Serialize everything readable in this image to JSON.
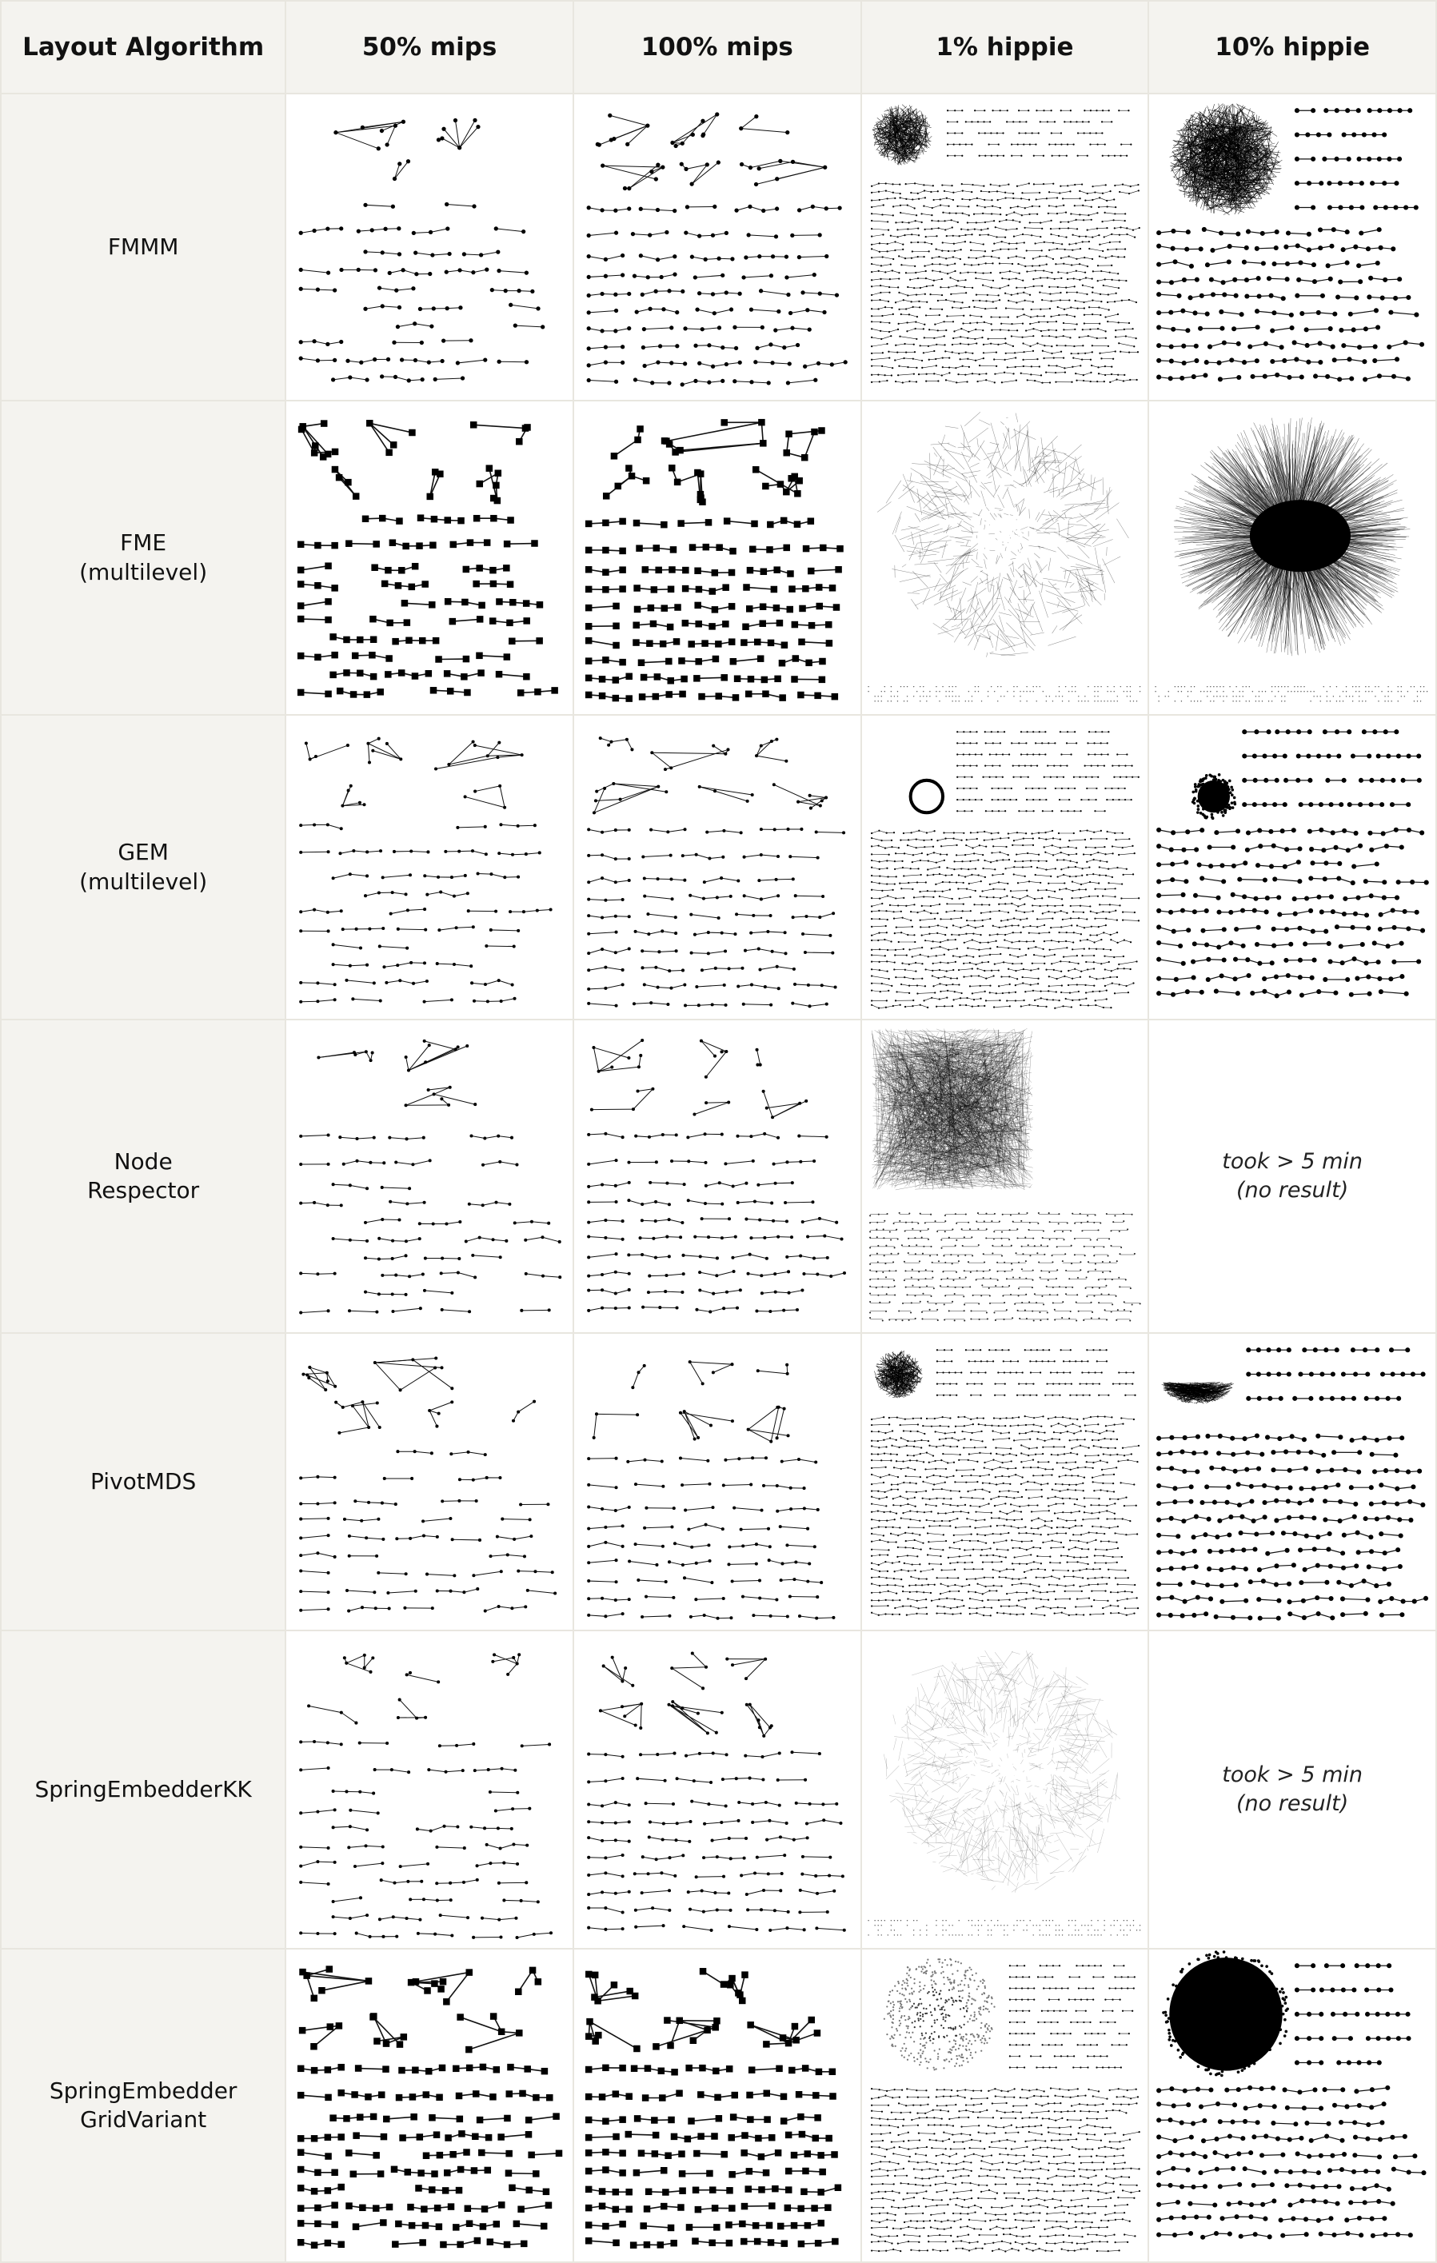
{
  "header": {
    "algorithm_label": "Layout Algorithm",
    "columns": [
      "50% mips",
      "100% mips",
      "1% hippie",
      "10% hippie"
    ]
  },
  "rows": [
    {
      "label_lines": [
        "FMMM"
      ],
      "cells": [
        {
          "kind": "components",
          "style": "compact",
          "density": 0.5
        },
        {
          "kind": "components",
          "style": "compact",
          "density": 1.0
        },
        {
          "kind": "hairball-components",
          "style": "compact",
          "density": 1.0
        },
        {
          "kind": "hairball-components",
          "style": "dense",
          "density": 0.8
        }
      ]
    },
    {
      "label_lines": [
        "FME",
        "(multilevel)"
      ],
      "cells": [
        {
          "kind": "components",
          "style": "bold",
          "density": 0.6
        },
        {
          "kind": "components",
          "style": "bold",
          "density": 1.0
        },
        {
          "kind": "radial",
          "style": "sparse",
          "density": 0.6
        },
        {
          "kind": "radial",
          "style": "dense",
          "density": 1.0
        }
      ]
    },
    {
      "label_lines": [
        "GEM",
        "(multilevel)"
      ],
      "cells": [
        {
          "kind": "components",
          "style": "spread",
          "density": 0.6
        },
        {
          "kind": "components",
          "style": "spread",
          "density": 1.0
        },
        {
          "kind": "hairball-components",
          "style": "ring",
          "density": 1.0
        },
        {
          "kind": "hairball-components",
          "style": "ball",
          "density": 0.8
        }
      ]
    },
    {
      "label_lines": [
        "Node",
        "Respector"
      ],
      "cells": [
        {
          "kind": "components",
          "style": "spread",
          "density": 0.6
        },
        {
          "kind": "components",
          "style": "spread",
          "density": 1.0
        },
        {
          "kind": "square",
          "style": "dense",
          "density": 1.0
        },
        {
          "kind": "no-result",
          "text_lines": [
            "took > 5 min",
            "(no result)"
          ]
        }
      ]
    },
    {
      "label_lines": [
        "PivotMDS"
      ],
      "cells": [
        {
          "kind": "components",
          "style": "spread",
          "density": 0.55
        },
        {
          "kind": "components",
          "style": "spread",
          "density": 0.9
        },
        {
          "kind": "hairball-components",
          "style": "small",
          "density": 1.0
        },
        {
          "kind": "hairball-components",
          "style": "triangle",
          "density": 0.8
        }
      ]
    },
    {
      "label_lines": [
        "SpringEmbedderKK"
      ],
      "cells": [
        {
          "kind": "components",
          "style": "spread",
          "density": 0.6
        },
        {
          "kind": "components",
          "style": "spread",
          "density": 1.0
        },
        {
          "kind": "radial",
          "style": "faint",
          "density": 0.5
        },
        {
          "kind": "no-result",
          "text_lines": [
            "took > 5 min",
            "(no result)"
          ]
        }
      ]
    },
    {
      "label_lines": [
        "SpringEmbedder",
        "GridVariant"
      ],
      "cells": [
        {
          "kind": "components",
          "style": "bold",
          "density": 0.7
        },
        {
          "kind": "components",
          "style": "bold",
          "density": 1.0
        },
        {
          "kind": "hairball-components",
          "style": "disk",
          "density": 1.0
        },
        {
          "kind": "hairball-components",
          "style": "blob",
          "density": 0.9
        }
      ]
    }
  ]
}
